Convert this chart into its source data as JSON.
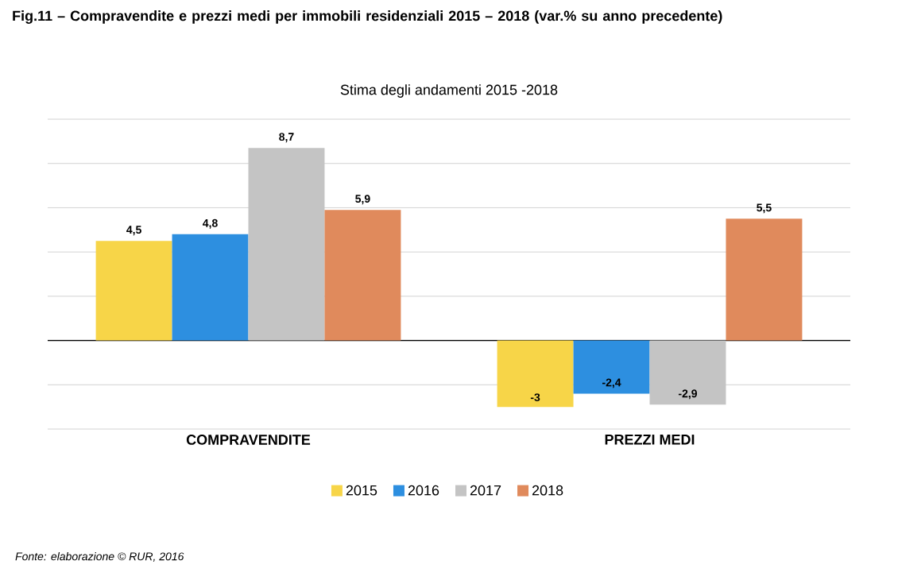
{
  "chart_data": {
    "type": "bar",
    "title": "Fig.11 – Compravendite e prezzi medi per immobili residenziali 2015 – 2018 (var.% su anno precedente)",
    "subtitle": "Stima degli andamenti 2015 -2018",
    "categories": [
      "COMPRAVENDITE",
      "PREZZI MEDI"
    ],
    "series": [
      {
        "name": "2015",
        "color": "#f7d548",
        "values": [
          4.5,
          -3
        ],
        "value_labels": [
          "4,5",
          "-3"
        ]
      },
      {
        "name": "2016",
        "color": "#2d8fe0",
        "values": [
          4.8,
          -2.4
        ],
        "value_labels": [
          "4,8",
          "-2,4"
        ]
      },
      {
        "name": "2017",
        "color": "#c4c4c4",
        "values": [
          8.7,
          -2.9
        ],
        "value_labels": [
          "8,7",
          "-2,9"
        ]
      },
      {
        "name": "2018",
        "color": "#e08a5c",
        "values": [
          5.9,
          5.5
        ],
        "value_labels": [
          "5,9",
          "5,5"
        ]
      }
    ],
    "ylim": [
      -4,
      10
    ],
    "yticks": [
      {
        "value": -4,
        "label": null
      },
      {
        "value": -2,
        "label": null
      },
      {
        "value": 0,
        "label": null
      },
      {
        "value": 2,
        "label": null
      },
      {
        "value": 4,
        "label": null
      },
      {
        "value": 6,
        "label": null
      },
      {
        "value": 8,
        "label": null
      },
      {
        "value": 10,
        "label": null
      }
    ],
    "tick_labels": "x",
    "grid": "y",
    "legend": "bottom",
    "annotations": [
      "Fonte: elaborazione © RUR, 2016"
    ]
  }
}
